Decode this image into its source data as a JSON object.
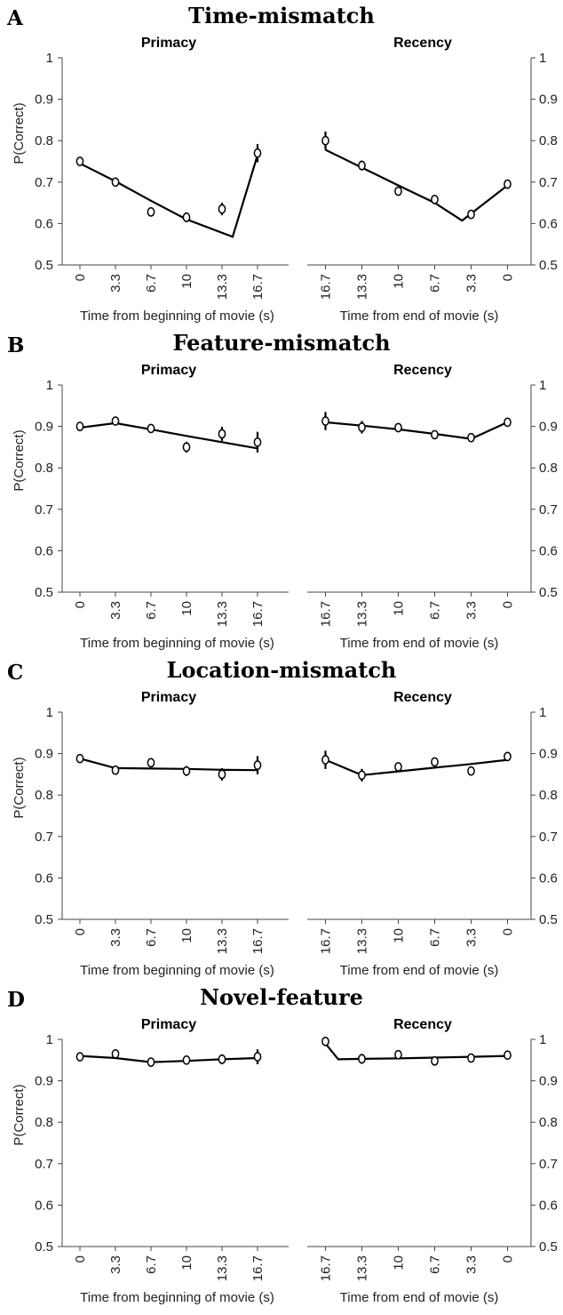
{
  "panels": [
    {
      "letter": "A",
      "title": "Time-mismatch",
      "subplots": [
        {
          "title": "Primacy",
          "ylabel": "P(Correct)",
          "xlabel": "Time from beginning of movie (s)"
        },
        {
          "title": "Recency",
          "ylabel": "",
          "xlabel": "Time from end of movie (s)"
        }
      ]
    },
    {
      "letter": "B",
      "title": "Feature-mismatch",
      "subplots": [
        {
          "title": "Primacy",
          "ylabel": "P(Correct)",
          "xlabel": "Time from beginning of movie (s)"
        },
        {
          "title": "Recency",
          "ylabel": "",
          "xlabel": "Time from end of movie (s)"
        }
      ]
    },
    {
      "letter": "C",
      "title": "Location-mismatch",
      "subplots": [
        {
          "title": "Primacy",
          "ylabel": "P(Correct)",
          "xlabel": "Time from beginning of movie (s)"
        },
        {
          "title": "Recency",
          "ylabel": "",
          "xlabel": "Time from end of movie (s)"
        }
      ]
    },
    {
      "letter": "D",
      "title": "Novel-feature",
      "subplots": [
        {
          "title": "Primacy",
          "ylabel": "P(Correct)",
          "xlabel": "Time from beginning of movie (s)"
        },
        {
          "title": "Recency",
          "ylabel": "",
          "xlabel": "Time from end of movie (s)"
        }
      ]
    }
  ],
  "chart_data": [
    {
      "type": "scatter",
      "panel": "A",
      "title": "Primacy",
      "xlabel": "Time from beginning of movie (s)",
      "ylabel": "P(Correct)",
      "x_ticks": [
        "0",
        "3.3",
        "6.7",
        "10",
        "13.3",
        "16.7"
      ],
      "ylim": [
        0.5,
        1
      ],
      "y_ticks": [
        "0.5",
        "0.6",
        "0.7",
        "0.8",
        "0.9",
        "1"
      ],
      "y_axis": "left",
      "points": [
        0.75,
        0.7,
        0.628,
        0.615,
        0.635,
        0.77
      ],
      "errors": [
        0.006,
        0.007,
        0.008,
        0.012,
        0.015,
        0.022
      ],
      "model_x": [
        0,
        1,
        2,
        3,
        4.3,
        5
      ],
      "model_y": [
        0.745,
        0.702,
        0.655,
        0.61,
        0.568,
        0.765
      ]
    },
    {
      "type": "scatter",
      "panel": "A",
      "title": "Recency",
      "xlabel": "Time from end of movie (s)",
      "ylabel": "",
      "x_ticks": [
        "16.7",
        "13.3",
        "10",
        "6.7",
        "3.3",
        "0"
      ],
      "ylim": [
        0.5,
        1
      ],
      "y_ticks": [
        "0.5",
        "0.6",
        "0.7",
        "0.8",
        "0.9",
        "1"
      ],
      "y_axis": "right",
      "points": [
        0.8,
        0.74,
        0.678,
        0.658,
        0.622,
        0.695
      ],
      "errors": [
        0.022,
        0.012,
        0.008,
        0.008,
        0.008,
        0.008
      ],
      "model_x": [
        0,
        1,
        2,
        3,
        3.75,
        5
      ],
      "model_y": [
        0.778,
        0.735,
        0.692,
        0.65,
        0.607,
        0.692
      ]
    },
    {
      "type": "scatter",
      "panel": "B",
      "title": "Primacy",
      "xlabel": "Time from beginning of movie (s)",
      "ylabel": "P(Correct)",
      "x_ticks": [
        "0",
        "3.3",
        "6.7",
        "10",
        "13.3",
        "16.7"
      ],
      "ylim": [
        0.5,
        1
      ],
      "y_ticks": [
        "0.5",
        "0.6",
        "0.7",
        "0.8",
        "0.9",
        "1"
      ],
      "y_axis": "left",
      "points": [
        0.9,
        0.913,
        0.895,
        0.85,
        0.882,
        0.862
      ],
      "errors": [
        0.007,
        0.008,
        0.008,
        0.013,
        0.017,
        0.025
      ],
      "model_x": [
        0,
        1,
        2,
        3,
        4,
        5
      ],
      "model_y": [
        0.897,
        0.908,
        0.893,
        0.877,
        0.862,
        0.847
      ]
    },
    {
      "type": "scatter",
      "panel": "B",
      "title": "Recency",
      "xlabel": "Time from end of movie (s)",
      "ylabel": "",
      "x_ticks": [
        "16.7",
        "13.3",
        "10",
        "6.7",
        "3.3",
        "0"
      ],
      "ylim": [
        0.5,
        1
      ],
      "y_ticks": [
        "0.5",
        "0.6",
        "0.7",
        "0.8",
        "0.9",
        "1"
      ],
      "y_axis": "right",
      "points": [
        0.913,
        0.898,
        0.897,
        0.88,
        0.873,
        0.91
      ],
      "errors": [
        0.022,
        0.015,
        0.01,
        0.01,
        0.01,
        0.008
      ],
      "model_x": [
        0,
        1,
        2,
        3,
        4,
        5
      ],
      "model_y": [
        0.91,
        0.902,
        0.893,
        0.882,
        0.87,
        0.91
      ]
    },
    {
      "type": "scatter",
      "panel": "C",
      "title": "Primacy",
      "xlabel": "Time from beginning of movie (s)",
      "ylabel": "P(Correct)",
      "x_ticks": [
        "0",
        "3.3",
        "6.7",
        "10",
        "13.3",
        "16.7"
      ],
      "ylim": [
        0.5,
        1
      ],
      "y_ticks": [
        "0.5",
        "0.6",
        "0.7",
        "0.8",
        "0.9",
        "1"
      ],
      "y_axis": "left",
      "points": [
        0.888,
        0.86,
        0.878,
        0.858,
        0.85,
        0.872
      ],
      "errors": [
        0.006,
        0.008,
        0.008,
        0.012,
        0.015,
        0.022
      ],
      "model_x": [
        0,
        1,
        2,
        3,
        4,
        5
      ],
      "model_y": [
        0.888,
        0.865,
        0.864,
        0.863,
        0.861,
        0.86
      ]
    },
    {
      "type": "scatter",
      "panel": "C",
      "title": "Recency",
      "xlabel": "Time from end of movie (s)",
      "ylabel": "",
      "x_ticks": [
        "16.7",
        "13.3",
        "10",
        "6.7",
        "3.3",
        "0"
      ],
      "ylim": [
        0.5,
        1
      ],
      "y_ticks": [
        "0.5",
        "0.6",
        "0.7",
        "0.8",
        "0.9",
        "1"
      ],
      "y_axis": "right",
      "points": [
        0.885,
        0.848,
        0.868,
        0.88,
        0.858,
        0.893
      ],
      "errors": [
        0.022,
        0.015,
        0.01,
        0.008,
        0.008,
        0.006
      ],
      "model_x": [
        0,
        1,
        2,
        3,
        4,
        5
      ],
      "model_y": [
        0.885,
        0.848,
        0.857,
        0.866,
        0.875,
        0.885
      ]
    },
    {
      "type": "scatter",
      "panel": "D",
      "title": "Primacy",
      "xlabel": "Time from beginning of movie (s)",
      "ylabel": "P(Correct)",
      "x_ticks": [
        "0",
        "3.3",
        "6.7",
        "10",
        "13.3",
        "16.7"
      ],
      "ylim": [
        0.5,
        1
      ],
      "y_ticks": [
        "0.5",
        "0.6",
        "0.7",
        "0.8",
        "0.9",
        "1"
      ],
      "y_axis": "left",
      "points": [
        0.958,
        0.965,
        0.945,
        0.95,
        0.952,
        0.958
      ],
      "errors": [
        0.006,
        0.006,
        0.008,
        0.01,
        0.012,
        0.018
      ],
      "model_x": [
        0,
        1,
        2,
        3,
        4,
        5
      ],
      "model_y": [
        0.96,
        0.955,
        0.945,
        0.948,
        0.952,
        0.955
      ]
    },
    {
      "type": "scatter",
      "panel": "D",
      "title": "Recency",
      "xlabel": "Time from end of movie (s)",
      "ylabel": "",
      "x_ticks": [
        "16.7",
        "13.3",
        "10",
        "6.7",
        "3.3",
        "0"
      ],
      "ylim": [
        0.5,
        1
      ],
      "y_ticks": [
        "0.5",
        "0.6",
        "0.7",
        "0.8",
        "0.9",
        "1"
      ],
      "y_axis": "right",
      "points": [
        0.995,
        0.953,
        0.963,
        0.948,
        0.955,
        0.962
      ],
      "errors": [
        0.006,
        0.012,
        0.008,
        0.008,
        0.008,
        0.006
      ],
      "model_x": [
        0,
        0.35,
        1,
        2,
        3,
        4,
        5
      ],
      "model_y": [
        0.99,
        0.952,
        0.953,
        0.954,
        0.956,
        0.958,
        0.96
      ]
    }
  ]
}
